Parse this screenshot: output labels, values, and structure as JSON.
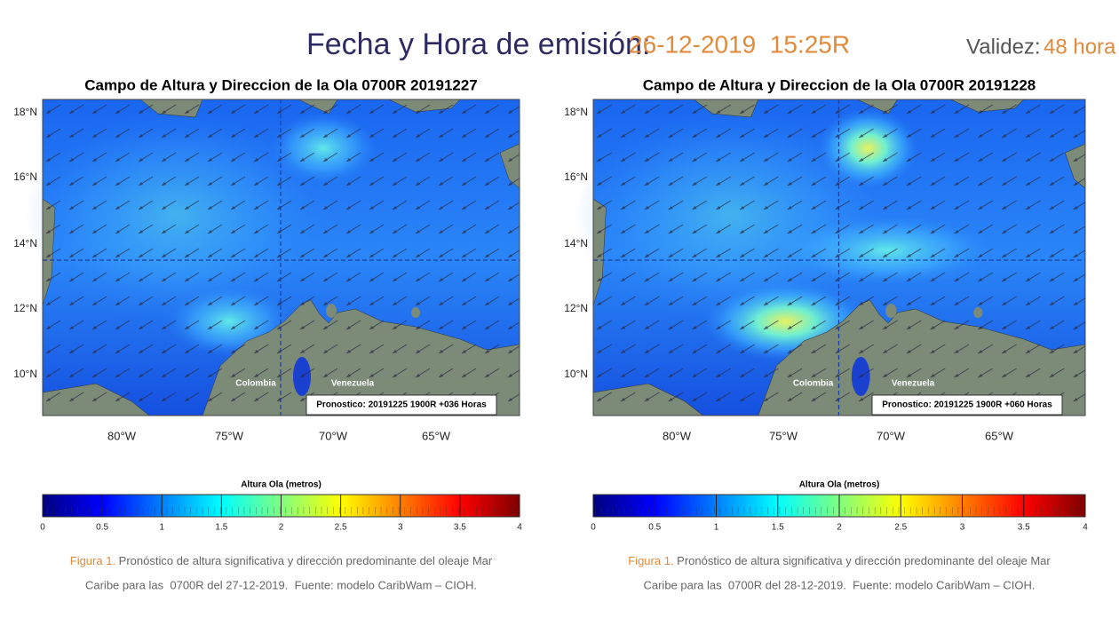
{
  "header": {
    "title": "Fecha y Hora de emisión:",
    "datetime": "26-12-2019  15:25R",
    "validity_label": "Validez:",
    "validity_value": "48 hora"
  },
  "panels": [
    {
      "title": "Campo de Altura y Direccion de la Ola 0700R 20191227",
      "lat_labels": [
        "18°N",
        "16°N",
        "14°N",
        "12°N",
        "10°N"
      ],
      "lon_labels": [
        "80°W",
        "75°W",
        "70°W",
        "65°W"
      ],
      "countries": [
        "Colombia",
        "Venezuela"
      ],
      "forecast": "Pronostico: 20191225 1900R +036 Horas",
      "colorbar_label": "Altura Ola (metros)",
      "colorbar_ticks": [
        0,
        0.5,
        1,
        1.5,
        2,
        2.5,
        3,
        3.5,
        4
      ],
      "caption": {
        "figure": "Figura 1.",
        "line1": " Pronóstico de altura significativa y dirección predominante del oleaje Mar",
        "line2": "Caribe para las  0700R del 27-12-2019.  Fuente: modelo CaribWam – CIOH."
      }
    },
    {
      "title": "Campo de Altura y Direccion de la Ola 0700R 20191228",
      "lat_labels": [
        "18°N",
        "16°N",
        "14°N",
        "12°N",
        "10°N"
      ],
      "lon_labels": [
        "80°W",
        "75°W",
        "70°W",
        "65°W"
      ],
      "countries": [
        "Colombia",
        "Venezuela"
      ],
      "forecast": "Pronostico: 20191225 1900R +060 Horas",
      "colorbar_label": "Altura Ola (metros)",
      "colorbar_ticks": [
        0,
        0.5,
        1,
        1.5,
        2,
        2.5,
        3,
        3.5,
        4
      ],
      "caption": {
        "figure": "Figura 1.",
        "line1": " Pronóstico de altura significativa y dirección predominante del oleaje Mar",
        "line2": "Caribe para las  0700R del 28-12-2019.  Fuente: modelo CaribWam – CIOH."
      }
    }
  ]
}
